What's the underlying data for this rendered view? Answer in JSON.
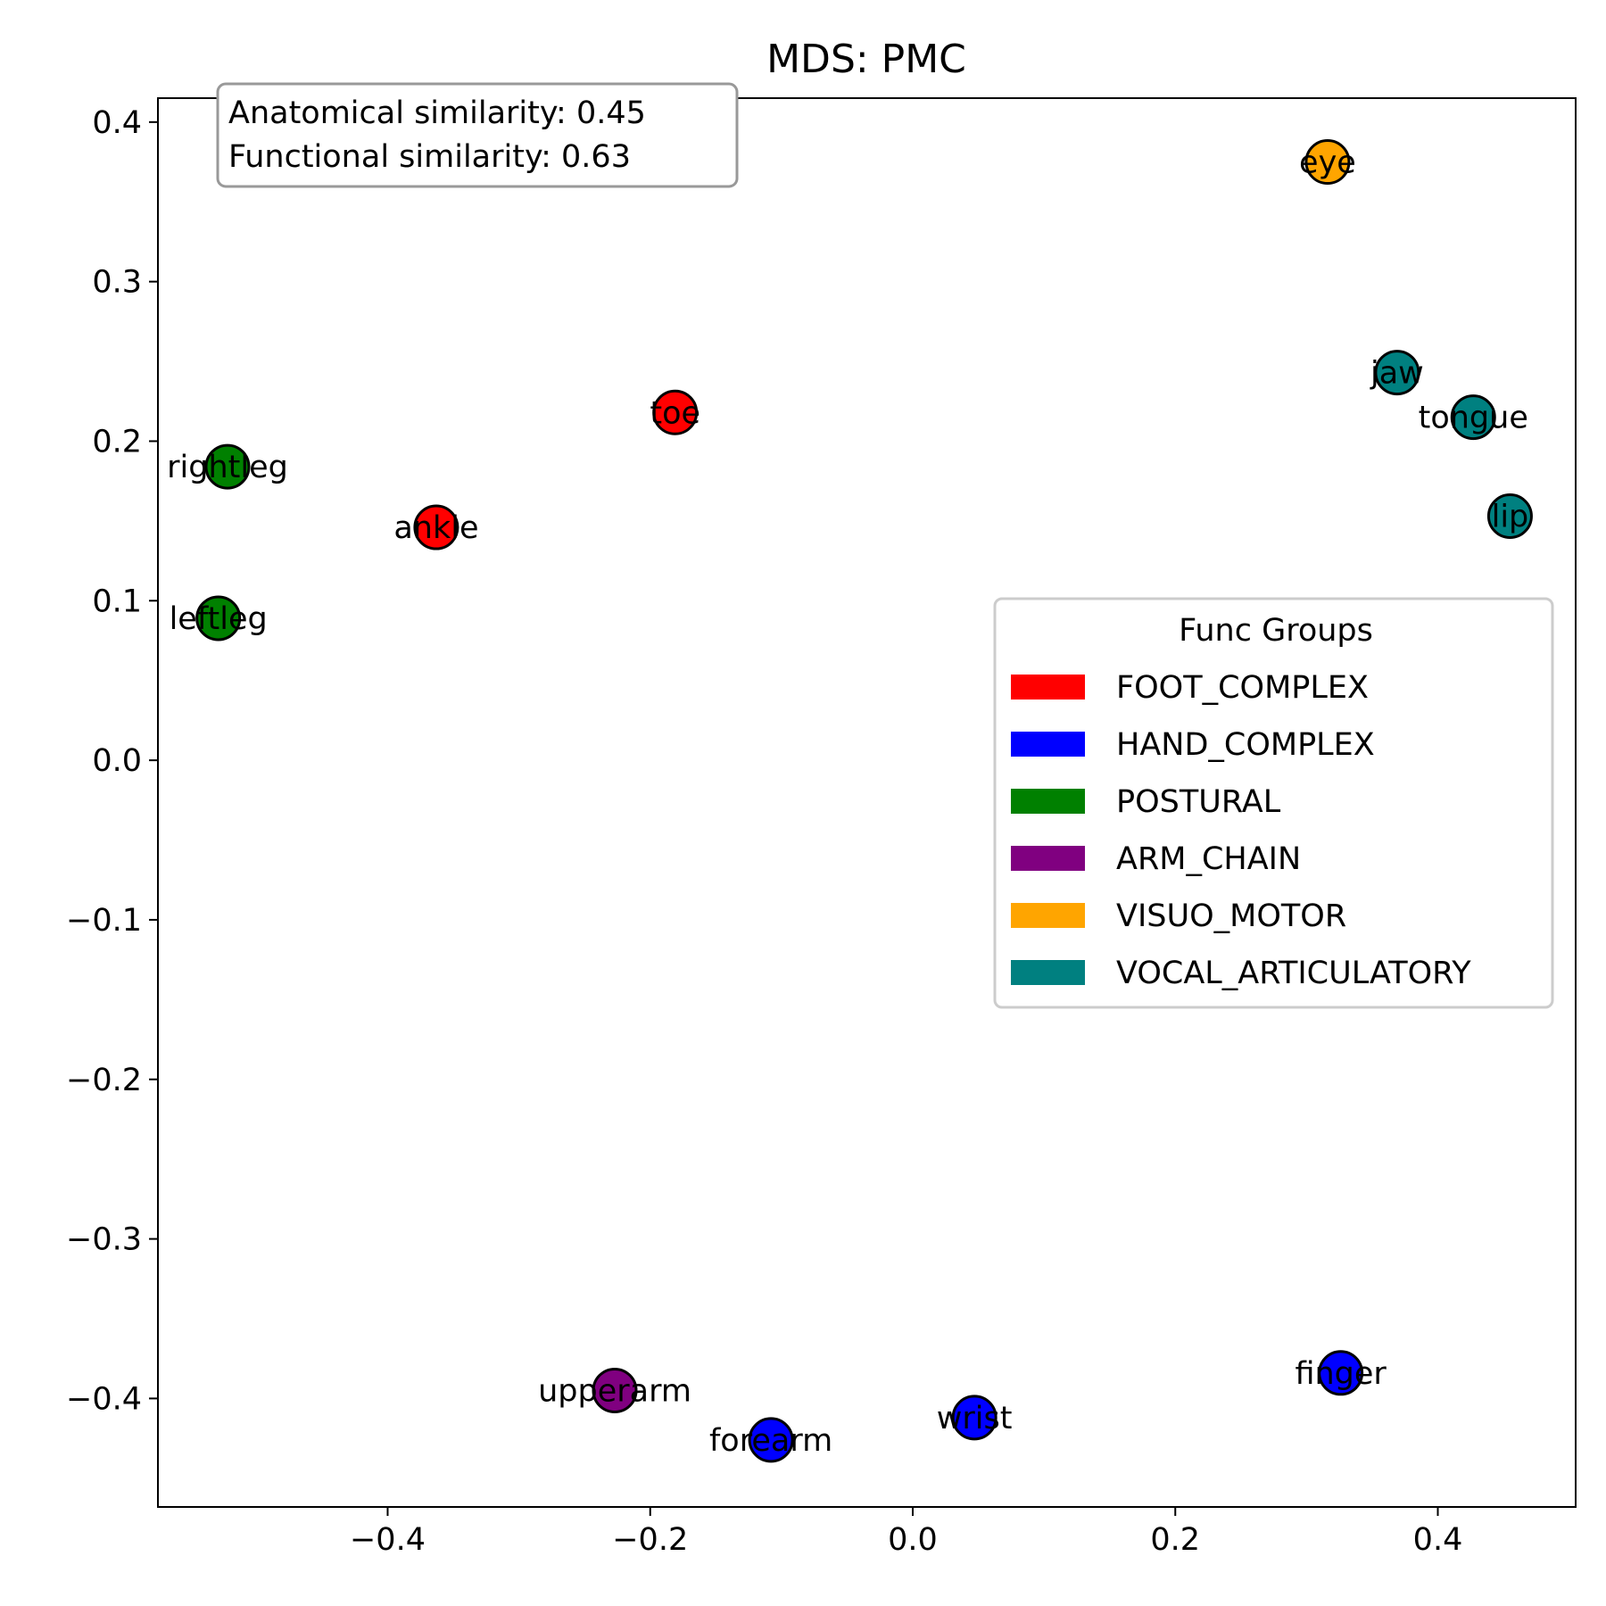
{
  "chart_data": {
    "type": "scatter",
    "title": "MDS: PMC",
    "xlabel": "",
    "ylabel": "",
    "xlim": [
      -0.575,
      0.505
    ],
    "ylim": [
      -0.468,
      0.415
    ],
    "xticks": [
      -0.4,
      -0.2,
      0.0,
      0.2,
      0.4
    ],
    "xtick_labels": [
      "−0.4",
      "−0.2",
      "0.0",
      "0.2",
      "0.4"
    ],
    "yticks": [
      0.4,
      0.3,
      0.2,
      0.1,
      0.0,
      -0.1,
      -0.2,
      -0.3,
      -0.4
    ],
    "ytick_labels": [
      "0.4",
      "0.3",
      "0.2",
      "0.1",
      "0.0",
      "−0.1",
      "−0.2",
      "−0.3",
      "−0.4"
    ],
    "grid": false,
    "legend_position": "right",
    "annotations": [
      "Anatomical similarity: 0.45",
      "Functional similarity: 0.63"
    ],
    "legend": {
      "title": "Func Groups",
      "items": [
        {
          "label": "FOOT_COMPLEX",
          "color": "#ff0000"
        },
        {
          "label": "HAND_COMPLEX",
          "color": "#0000ff"
        },
        {
          "label": "POSTURAL",
          "color": "#008000"
        },
        {
          "label": "ARM_CHAIN",
          "color": "#800080"
        },
        {
          "label": "VISUO_MOTOR",
          "color": "#ffa500"
        },
        {
          "label": "VOCAL_ARTICULATORY",
          "color": "#008080"
        }
      ]
    },
    "points": [
      {
        "label": "eye",
        "x": 0.316,
        "y": 0.375,
        "color": "#ffa500"
      },
      {
        "label": "jaw",
        "x": 0.369,
        "y": 0.243,
        "color": "#008080"
      },
      {
        "label": "tongue",
        "x": 0.427,
        "y": 0.215,
        "color": "#008080"
      },
      {
        "label": "lip",
        "x": 0.455,
        "y": 0.153,
        "color": "#008080"
      },
      {
        "label": "toe",
        "x": -0.181,
        "y": 0.218,
        "color": "#ff0000"
      },
      {
        "label": "rightleg",
        "x": -0.522,
        "y": 0.184,
        "color": "#008000"
      },
      {
        "label": "ankle",
        "x": -0.363,
        "y": 0.146,
        "color": "#ff0000"
      },
      {
        "label": "leftleg",
        "x": -0.529,
        "y": 0.089,
        "color": "#008000"
      },
      {
        "label": "upperarm",
        "x": -0.227,
        "y": -0.395,
        "color": "#800080"
      },
      {
        "label": "forearm",
        "x": -0.108,
        "y": -0.426,
        "color": "#0000ff"
      },
      {
        "label": "wrist",
        "x": 0.047,
        "y": -0.412,
        "color": "#0000ff"
      },
      {
        "label": "finger",
        "x": 0.326,
        "y": -0.384,
        "color": "#0000ff"
      }
    ]
  }
}
